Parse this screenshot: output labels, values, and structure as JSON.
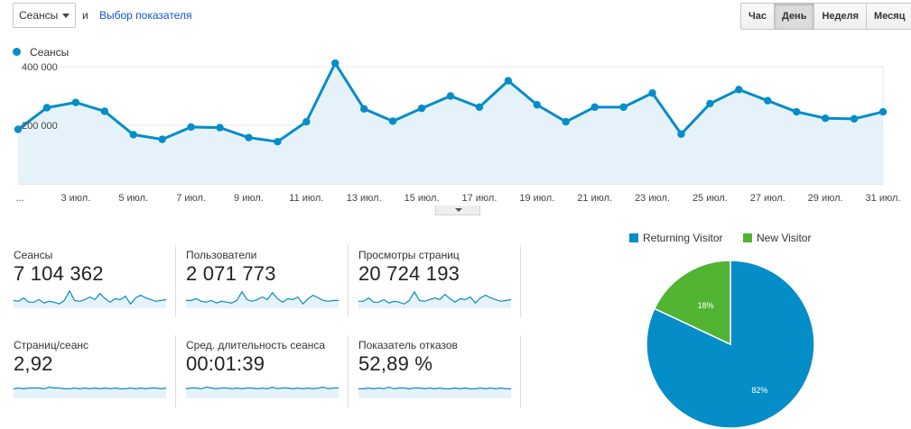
{
  "controls": {
    "metric_select": "Сеансы",
    "conjunction": "и",
    "metric_picker": "Выбор показателя",
    "ranges": [
      {
        "label": "Час",
        "active": false
      },
      {
        "label": "День",
        "active": true
      },
      {
        "label": "Неделя",
        "active": false
      },
      {
        "label": "Месяц",
        "active": false
      }
    ]
  },
  "chart_data": [
    {
      "type": "line",
      "title": "",
      "legend": "Сеансы",
      "color": "#058dc7",
      "ylim": [
        0,
        400000
      ],
      "y_ticks": [
        {
          "value": 400000,
          "label": "400 000"
        },
        {
          "value": 200000,
          "label": "200 000"
        }
      ],
      "x_tick_labels": [
        "...",
        "3 июл.",
        "5 июл.",
        "7 июл.",
        "9 июл.",
        "11 июл.",
        "13 июл.",
        "15 июл.",
        "17 июл.",
        "19 июл.",
        "21 июл.",
        "23 июл.",
        "25 июл.",
        "27 июл.",
        "29 июл.",
        "31 июл."
      ],
      "series": [
        {
          "name": "Сеансы",
          "values": [
            186000,
            260000,
            278000,
            248000,
            168000,
            152000,
            194000,
            192000,
            158000,
            144000,
            212000,
            412000,
            256000,
            214000,
            258000,
            300000,
            262000,
            352000,
            270000,
            212000,
            262000,
            262000,
            310000,
            170000,
            274000,
            322000,
            284000,
            246000,
            224000,
            222000,
            246000
          ]
        }
      ]
    },
    {
      "type": "pie",
      "legend": [
        "Returning Visitor",
        "New Visitor"
      ],
      "values": [
        82,
        18
      ],
      "labels": [
        "82%",
        "18%"
      ],
      "colors": [
        "#058dc7",
        "#50b432"
      ]
    }
  ],
  "metrics": [
    {
      "label": "Сеансы",
      "value": "7 104 362",
      "spark": [
        24,
        23,
        27,
        22,
        22,
        25,
        21,
        23,
        22,
        20,
        24,
        35,
        24,
        23,
        25,
        28,
        25,
        32,
        26,
        22,
        26,
        25,
        29,
        20,
        27,
        30,
        27,
        25,
        23,
        24,
        25
      ]
    },
    {
      "label": "Пользователи",
      "value": "2 071 773",
      "spark": [
        24,
        24,
        26,
        23,
        22,
        24,
        21,
        23,
        22,
        21,
        24,
        34,
        25,
        23,
        25,
        28,
        25,
        33,
        26,
        22,
        26,
        25,
        28,
        20,
        26,
        30,
        27,
        24,
        23,
        24,
        24
      ]
    },
    {
      "label": "Просмотры страниц",
      "value": "20 724 193",
      "spark": [
        23,
        23,
        27,
        22,
        22,
        25,
        21,
        23,
        22,
        20,
        24,
        34,
        24,
        23,
        25,
        27,
        25,
        31,
        26,
        22,
        26,
        25,
        28,
        21,
        27,
        30,
        27,
        25,
        23,
        24,
        25
      ]
    },
    {
      "label": "Страниц/сеанс",
      "value": "2,92",
      "spark": [
        26,
        27,
        26,
        27,
        27,
        27,
        26,
        28,
        27,
        27,
        26,
        26,
        27,
        26,
        27,
        26,
        27,
        26,
        27,
        26,
        27,
        26,
        26,
        27,
        26,
        27,
        26,
        27,
        27,
        26,
        27
      ]
    },
    {
      "label": "Сред. длительность сеанса",
      "value": "00:01:39",
      "spark": [
        26,
        27,
        27,
        26,
        28,
        27,
        26,
        27,
        27,
        26,
        27,
        26,
        27,
        27,
        26,
        27,
        26,
        28,
        26,
        27,
        27,
        26,
        27,
        26,
        27,
        26,
        27,
        28,
        26,
        27,
        27
      ]
    },
    {
      "label": "Показатель отказов",
      "value": "52,89 %",
      "spark": [
        26,
        26,
        27,
        26,
        27,
        26,
        28,
        26,
        27,
        27,
        26,
        27,
        27,
        26,
        27,
        26,
        27,
        26,
        26,
        27,
        26,
        27,
        26,
        26,
        27,
        26,
        27,
        26,
        27,
        26,
        26
      ]
    }
  ]
}
